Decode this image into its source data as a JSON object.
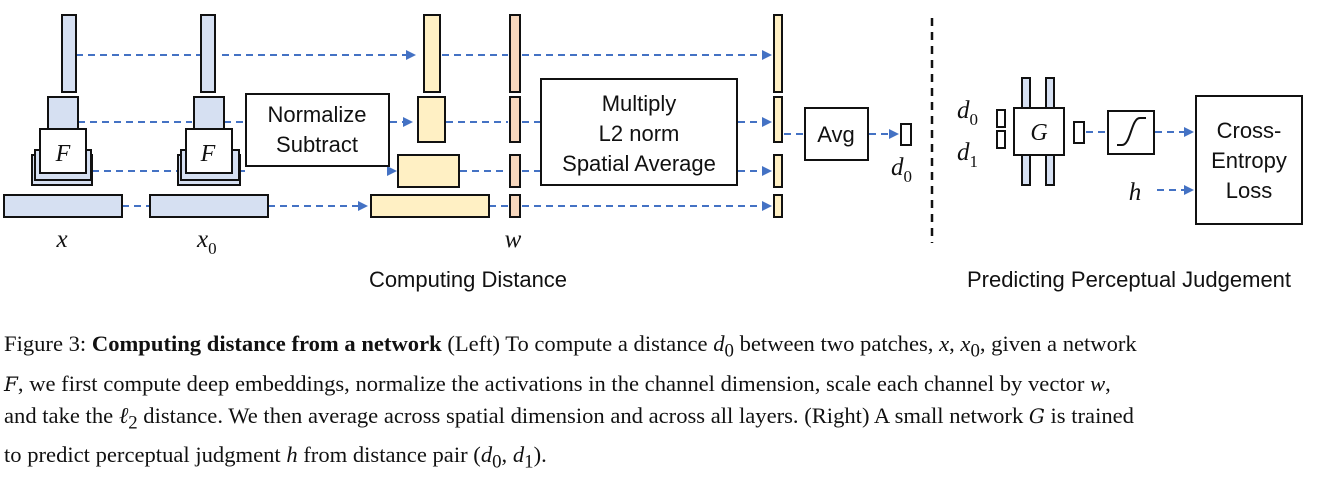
{
  "left_panel": {
    "caption": "Computing Distance",
    "input_x_label": "x",
    "input_x0_label": "x",
    "input_x0_subscript": "0",
    "network_label": "F",
    "normalize_lines": [
      "Normalize",
      "Subtract"
    ],
    "weight_label": "w",
    "combine_lines": [
      "Multiply",
      "L2 norm",
      "Spatial Average"
    ],
    "avg_label": "Avg",
    "output_label": "d",
    "output_subscript": "0"
  },
  "right_panel": {
    "caption": "Predicting Perceptual Judgement",
    "d0_label": "d",
    "d0_subscript": "0",
    "d1_label": "d",
    "d1_subscript": "1",
    "network_label": "G",
    "h_label": "h",
    "loss_lines": [
      "Cross-",
      "Entropy",
      "Loss"
    ]
  },
  "colors": {
    "feature_blue": "#d6e0f2",
    "feature_yellow": "#fff0c4",
    "feature_orange": "#f7d7bd",
    "arrow_blue": "#4472c4",
    "outline": "#111111"
  },
  "figure_caption": {
    "prefix": "Figure 3: ",
    "title": "Computing distance from a network",
    "line1_rest": " (Left) To compute a distance ",
    "d0": "d",
    "d0_sub": "0",
    "line1_tail": " between two patches, ",
    "x": "x",
    "comma1": ", ",
    "x0": "x",
    "x0_sub": "0",
    "line1_end": ", given a network",
    "F": "F",
    "line2": ", we first compute deep embeddings, normalize the activations in the channel dimension, scale each channel by vector ",
    "w": "w",
    "line2_end": ",",
    "line3_a": "and take the ",
    "ell": "ℓ",
    "ell_sub": "2",
    "line3_b": " distance. We then average across spatial dimension and across all layers. (Right) A small network ",
    "G": "G",
    "line3_c": " is trained",
    "line4_a": "to predict perceptual judgment ",
    "h": "h",
    "line4_b": " from distance pair (",
    "pair_d0": "d",
    "pair_d0_sub": "0",
    "pair_comma": ", ",
    "pair_d1": "d",
    "pair_d1_sub": "1",
    "line4_end": ")."
  }
}
